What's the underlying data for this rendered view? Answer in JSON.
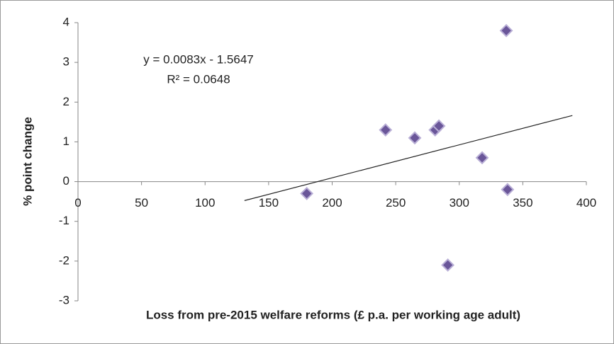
{
  "chart_data": {
    "type": "scatter",
    "x_label": "Loss from pre-2015 welfare reforms (£ p.a. per working age adult)",
    "y_label": "% point change",
    "series": [
      {
        "color": "#6a5699",
        "x": [
          180,
          242,
          265,
          281,
          284,
          291,
          318,
          337,
          338
        ],
        "values": [
          -0.3,
          1.3,
          1.1,
          1.3,
          1.4,
          -2.1,
          0.6,
          3.8,
          -0.2
        ]
      }
    ],
    "trendline": {
      "equation": "y = 0.0083x - 1.5647",
      "r_squared": "R² = 0.0648",
      "slope": 0.0083,
      "intercept": -1.5647,
      "x_range": [
        131,
        389
      ]
    },
    "xlim": [
      0,
      400
    ],
    "xticks": [
      0,
      50,
      100,
      150,
      200,
      250,
      300,
      350,
      400
    ],
    "ylim": [
      -3,
      4
    ],
    "yticks": [
      -3,
      -2,
      -1,
      0,
      1,
      2,
      3,
      4
    ],
    "grid": false
  }
}
